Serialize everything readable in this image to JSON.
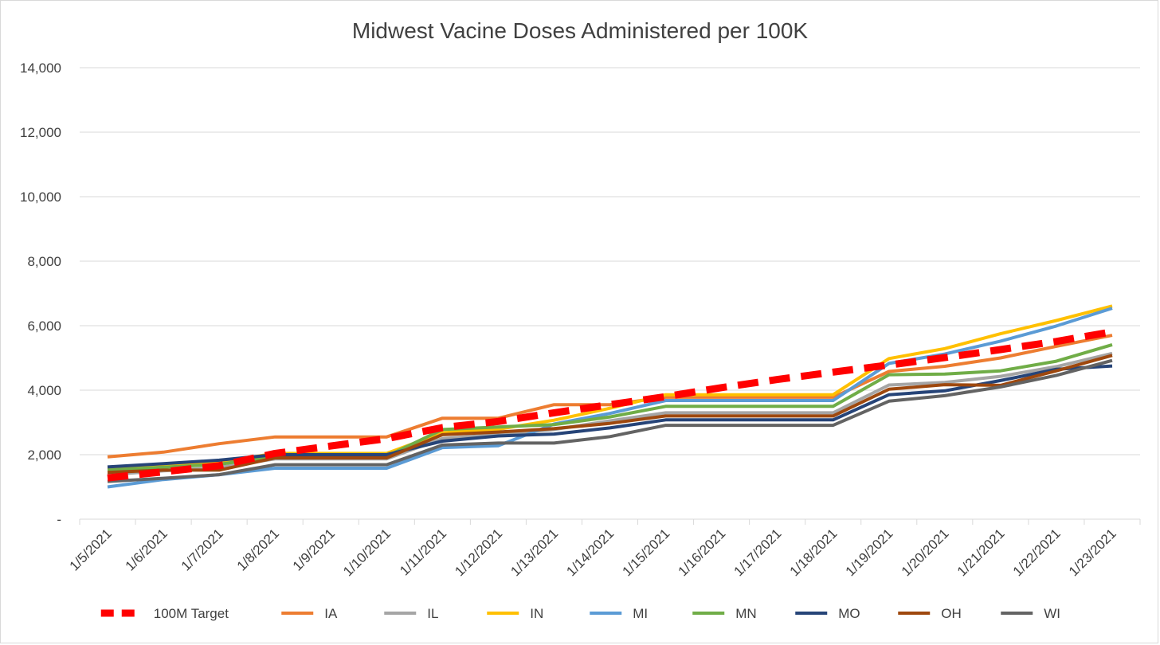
{
  "chart_data": {
    "type": "line",
    "title": "Midwest Vacine Doses Administered per 100K",
    "xlabel": "",
    "ylabel": "",
    "ylim": [
      0,
      14000
    ],
    "y_ticks": [
      0,
      2000,
      4000,
      6000,
      8000,
      10000,
      12000,
      14000
    ],
    "y_tick_labels": [
      "-",
      "2,000",
      "4,000",
      "6,000",
      "8,000",
      "10,000",
      "12,000",
      "14,000"
    ],
    "categories": [
      "1/5/2021",
      "1/6/2021",
      "1/7/2021",
      "1/8/2021",
      "1/9/2021",
      "1/10/2021",
      "1/11/2021",
      "1/12/2021",
      "1/13/2021",
      "1/14/2021",
      "1/15/2021",
      "1/16/2021",
      "1/17/2021",
      "1/18/2021",
      "1/19/2021",
      "1/20/2021",
      "1/21/2021",
      "1/22/2021",
      "1/23/2021"
    ],
    "grid": true,
    "legend_position": "bottom",
    "series": [
      {
        "name": "100M Target",
        "color": "#ff0000",
        "dashed": true,
        "values": [
          1280,
          1470,
          1660,
          2040,
          2270,
          2500,
          2840,
          3030,
          3300,
          3550,
          3800,
          4080,
          4330,
          4560,
          4780,
          5010,
          5260,
          5510,
          5810
        ]
      },
      {
        "name": "IA",
        "color": "#ed7d31",
        "dashed": false,
        "values": [
          1930,
          2080,
          2340,
          2550,
          2550,
          2550,
          3130,
          3130,
          3550,
          3550,
          3780,
          3780,
          3780,
          3780,
          4580,
          4740,
          5000,
          5360,
          5700
        ]
      },
      {
        "name": "IL",
        "color": "#a5a5a5",
        "dashed": false,
        "values": [
          1380,
          1500,
          1600,
          1870,
          1870,
          1870,
          2500,
          2620,
          2780,
          3050,
          3300,
          3300,
          3300,
          3300,
          4160,
          4240,
          4430,
          4730,
          5140
        ]
      },
      {
        "name": "IN",
        "color": "#ffc000",
        "dashed": false,
        "values": [
          1560,
          1660,
          1760,
          2040,
          2040,
          2040,
          2680,
          2790,
          3070,
          3440,
          3860,
          3860,
          3860,
          3860,
          4980,
          5290,
          5750,
          6160,
          6610
        ]
      },
      {
        "name": "MI",
        "color": "#5b9bd5",
        "dashed": false,
        "values": [
          1000,
          1230,
          1380,
          1580,
          1580,
          1580,
          2220,
          2280,
          2950,
          3280,
          3680,
          3680,
          3680,
          3680,
          4830,
          5120,
          5520,
          5990,
          6540
        ]
      },
      {
        "name": "MN",
        "color": "#70ad47",
        "dashed": false,
        "values": [
          1520,
          1610,
          1700,
          1950,
          1950,
          1950,
          2780,
          2860,
          2930,
          3170,
          3500,
          3500,
          3500,
          3500,
          4480,
          4500,
          4600,
          4900,
          5410
        ]
      },
      {
        "name": "MO",
        "color": "#264478",
        "dashed": false,
        "values": [
          1620,
          1720,
          1830,
          2000,
          2000,
          2000,
          2420,
          2580,
          2640,
          2830,
          3080,
          3080,
          3080,
          3080,
          3860,
          3980,
          4300,
          4650,
          4750
        ]
      },
      {
        "name": "OH",
        "color": "#9e480e",
        "dashed": false,
        "values": [
          1450,
          1520,
          1520,
          1900,
          1900,
          1900,
          2620,
          2700,
          2810,
          2970,
          3200,
          3200,
          3200,
          3200,
          4030,
          4170,
          4150,
          4600,
          5080
        ]
      },
      {
        "name": "WI",
        "color": "#636363",
        "dashed": false,
        "values": [
          1170,
          1270,
          1380,
          1690,
          1690,
          1690,
          2300,
          2360,
          2360,
          2560,
          2910,
          2910,
          2910,
          2910,
          3660,
          3830,
          4100,
          4460,
          4920
        ]
      }
    ]
  }
}
